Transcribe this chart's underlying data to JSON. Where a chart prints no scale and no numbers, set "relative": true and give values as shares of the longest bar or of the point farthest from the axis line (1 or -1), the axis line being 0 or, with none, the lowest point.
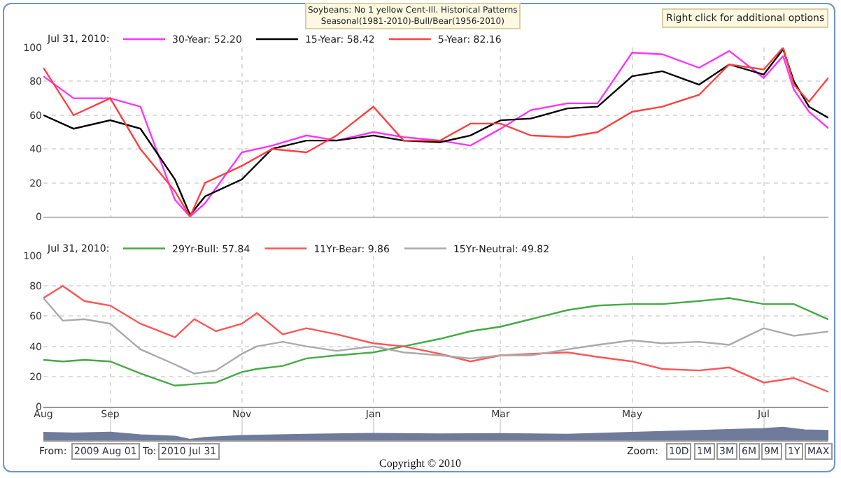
{
  "chart_data": [
    {
      "type": "line",
      "title": "Soybeans: No 1 yellow Cent-Ill. Historical Patterns",
      "subtitle": "Seasonal(1981-2010)-Bull/Bear(1956-2010)",
      "legend_title": "Jul 31, 2010:",
      "annotations": [
        "Right click for additional options"
      ],
      "xlim": [
        "2009-08-01",
        "2010-07-31"
      ],
      "xticks": [
        {
          "value": "2009-09-01",
          "label": null
        },
        {
          "value": "2009-11-01",
          "label": null
        },
        {
          "value": "2010-01-01",
          "label": null
        },
        {
          "value": "2010-03-01",
          "label": null
        },
        {
          "value": "2010-05-01",
          "label": null
        },
        {
          "value": "2010-07-01",
          "label": null
        }
      ],
      "ylim": [
        0,
        100
      ],
      "yticks": [
        0,
        20,
        40,
        60,
        80,
        100
      ],
      "grid": true,
      "legend": "top left",
      "tick_labels": "y",
      "series": [
        {
          "name": "30-Year: 52.20",
          "color": "#ff33ff",
          "x": [
            "2009-08-01",
            "2009-08-15",
            "2009-09-01",
            "2009-09-15",
            "2009-10-01",
            "2009-10-08",
            "2009-10-15",
            "2009-11-01",
            "2009-11-15",
            "2009-12-01",
            "2009-12-15",
            "2010-01-01",
            "2010-01-15",
            "2010-02-01",
            "2010-02-15",
            "2010-03-01",
            "2010-03-15",
            "2010-04-01",
            "2010-04-15",
            "2010-05-01",
            "2010-05-15",
            "2010-06-01",
            "2010-06-15",
            "2010-07-01",
            "2010-07-10",
            "2010-07-15",
            "2010-07-22",
            "2010-07-31"
          ],
          "values": [
            83,
            70,
            70,
            65,
            10,
            0,
            8,
            38,
            42,
            48,
            45,
            50,
            47,
            45,
            42,
            52,
            63,
            67,
            67,
            97,
            96,
            88,
            98,
            82,
            95,
            75,
            62,
            52.2
          ]
        },
        {
          "name": "15-Year: 58.42",
          "color": "#000000",
          "x": [
            "2009-08-01",
            "2009-08-15",
            "2009-09-01",
            "2009-09-15",
            "2009-10-01",
            "2009-10-08",
            "2009-10-15",
            "2009-11-01",
            "2009-11-15",
            "2009-12-01",
            "2009-12-15",
            "2010-01-01",
            "2010-01-15",
            "2010-02-01",
            "2010-02-15",
            "2010-03-01",
            "2010-03-15",
            "2010-04-01",
            "2010-04-15",
            "2010-05-01",
            "2010-05-15",
            "2010-06-01",
            "2010-06-15",
            "2010-07-01",
            "2010-07-10",
            "2010-07-15",
            "2010-07-22",
            "2010-07-31"
          ],
          "values": [
            60,
            52,
            57,
            52,
            22,
            1,
            12,
            22,
            40,
            45,
            45,
            48,
            45,
            44,
            48,
            57,
            58,
            64,
            65,
            83,
            86,
            78,
            90,
            84,
            99,
            80,
            65,
            58.42
          ]
        },
        {
          "name": "5-Year: 82.16",
          "color": "#ff4040",
          "x": [
            "2009-08-01",
            "2009-08-15",
            "2009-09-01",
            "2009-09-15",
            "2009-10-01",
            "2009-10-08",
            "2009-10-15",
            "2009-11-01",
            "2009-11-15",
            "2009-12-01",
            "2009-12-15",
            "2010-01-01",
            "2010-01-15",
            "2010-02-01",
            "2010-02-15",
            "2010-03-01",
            "2010-03-15",
            "2010-04-01",
            "2010-04-15",
            "2010-05-01",
            "2010-05-15",
            "2010-06-01",
            "2010-06-15",
            "2010-07-01",
            "2010-07-10",
            "2010-07-15",
            "2010-07-22",
            "2010-07-31"
          ],
          "values": [
            88,
            60,
            70,
            40,
            15,
            0,
            20,
            30,
            40,
            38,
            48,
            65,
            45,
            45,
            55,
            55,
            48,
            47,
            50,
            62,
            65,
            72,
            90,
            87,
            100,
            78,
            68,
            82.16
          ]
        }
      ]
    },
    {
      "type": "line",
      "legend_title": "Jul 31, 2010:",
      "xlim": [
        "2009-08-01",
        "2010-07-31"
      ],
      "xticks": [
        {
          "value": "2009-09-01",
          "label": null
        },
        {
          "value": "2009-11-01",
          "label": null
        },
        {
          "value": "2010-01-01",
          "label": null
        },
        {
          "value": "2010-03-01",
          "label": null
        },
        {
          "value": "2010-05-01",
          "label": null
        },
        {
          "value": "2010-07-01",
          "label": null
        }
      ],
      "ylim": [
        0,
        100
      ],
      "yticks": [
        0,
        20,
        40,
        60,
        80,
        100
      ],
      "grid": true,
      "legend": "top left",
      "tick_labels": "y",
      "series": [
        {
          "name": "29Yr-Bull: 57.84",
          "color": "#44aa44",
          "x": [
            "2009-08-01",
            "2009-08-10",
            "2009-08-20",
            "2009-09-01",
            "2009-09-15",
            "2009-10-01",
            "2009-10-10",
            "2009-10-20",
            "2009-11-01",
            "2009-11-08",
            "2009-11-20",
            "2009-12-01",
            "2009-12-15",
            "2010-01-01",
            "2010-01-15",
            "2010-02-01",
            "2010-02-15",
            "2010-03-01",
            "2010-03-15",
            "2010-04-01",
            "2010-04-15",
            "2010-05-01",
            "2010-05-15",
            "2010-06-01",
            "2010-06-15",
            "2010-07-01",
            "2010-07-15",
            "2010-07-31"
          ],
          "values": [
            31,
            30,
            31,
            30,
            22,
            14,
            15,
            16,
            23,
            25,
            27,
            32,
            34,
            36,
            40,
            45,
            50,
            53,
            58,
            64,
            67,
            68,
            68,
            70,
            72,
            68,
            68,
            57.84
          ]
        },
        {
          "name": "11Yr-Bear: 9.86",
          "color": "#ff5555",
          "x": [
            "2009-08-01",
            "2009-08-10",
            "2009-08-20",
            "2009-09-01",
            "2009-09-15",
            "2009-10-01",
            "2009-10-10",
            "2009-10-20",
            "2009-11-01",
            "2009-11-08",
            "2009-11-20",
            "2009-12-01",
            "2009-12-15",
            "2010-01-01",
            "2010-01-15",
            "2010-02-01",
            "2010-02-15",
            "2010-03-01",
            "2010-03-15",
            "2010-04-01",
            "2010-04-15",
            "2010-05-01",
            "2010-05-15",
            "2010-06-01",
            "2010-06-15",
            "2010-07-01",
            "2010-07-15",
            "2010-07-31"
          ],
          "values": [
            72,
            80,
            70,
            67,
            55,
            46,
            58,
            50,
            55,
            62,
            48,
            52,
            48,
            42,
            40,
            35,
            30,
            34,
            35,
            36,
            33,
            30,
            25,
            24,
            26,
            16,
            19,
            9.86
          ]
        },
        {
          "name": "15Yr-Neutral: 49.82",
          "color": "#aaaaaa",
          "x": [
            "2009-08-01",
            "2009-08-10",
            "2009-08-20",
            "2009-09-01",
            "2009-09-15",
            "2009-10-01",
            "2009-10-10",
            "2009-10-20",
            "2009-11-01",
            "2009-11-08",
            "2009-11-20",
            "2009-12-01",
            "2009-12-15",
            "2010-01-01",
            "2010-01-15",
            "2010-02-01",
            "2010-02-15",
            "2010-03-01",
            "2010-03-15",
            "2010-04-01",
            "2010-04-15",
            "2010-05-01",
            "2010-05-15",
            "2010-06-01",
            "2010-06-15",
            "2010-07-01",
            "2010-07-15",
            "2010-07-31"
          ],
          "values": [
            72,
            57,
            58,
            55,
            38,
            28,
            22,
            24,
            35,
            40,
            43,
            40,
            37,
            40,
            36,
            34,
            32,
            34,
            34,
            38,
            41,
            44,
            42,
            43,
            41,
            52,
            47,
            49.82
          ]
        }
      ]
    },
    {
      "type": "area",
      "relative": true,
      "grid": "x",
      "tick_labels": "x",
      "xlim": [
        "2009-08-01",
        "2010-07-31"
      ],
      "xticks": [
        {
          "value": "2009-08-01",
          "label": "Aug"
        },
        {
          "value": "2009-09-01",
          "label": "Sep"
        },
        {
          "value": "2009-11-01",
          "label": "Nov"
        },
        {
          "value": "2010-01-01",
          "label": "Jan"
        },
        {
          "value": "2010-03-01",
          "label": "Mar"
        },
        {
          "value": "2010-05-01",
          "label": "May"
        },
        {
          "value": "2010-07-01",
          "label": "Jul"
        }
      ],
      "annotations": [
        "From:",
        "2009 Aug 01",
        "To:",
        "2010 Jul 31",
        "Zoom:",
        "10D",
        "1M",
        "3M",
        "6M",
        "9M",
        "1Y",
        "MAX",
        "Copyright © 2010"
      ],
      "series": [
        {
          "color": "#6f7b9b",
          "x": [
            "2009-08-01",
            "2009-08-15",
            "2009-09-01",
            "2009-09-15",
            "2009-10-01",
            "2009-10-08",
            "2009-10-15",
            "2009-11-01",
            "2009-12-01",
            "2010-01-01",
            "2010-02-01",
            "2010-03-01",
            "2010-04-01",
            "2010-05-01",
            "2010-06-01",
            "2010-07-01",
            "2010-07-10",
            "2010-07-20",
            "2010-07-31"
          ],
          "values": [
            0.6,
            0.55,
            0.62,
            0.4,
            0.3,
            0.05,
            0.2,
            0.35,
            0.45,
            0.52,
            0.47,
            0.5,
            0.45,
            0.6,
            0.75,
            0.9,
            1,
            0.8,
            0.75
          ]
        }
      ]
    }
  ]
}
